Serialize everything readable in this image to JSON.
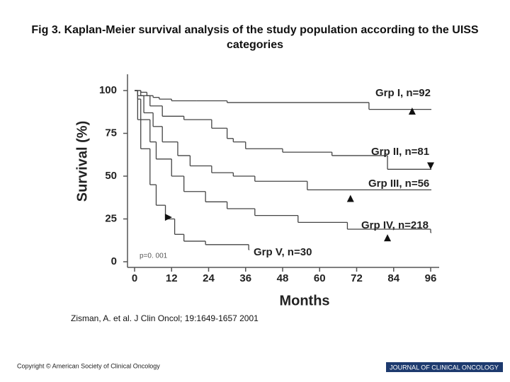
{
  "title": "Fig 3. Kaplan-Meier survival analysis of the study population according to the UISS categories",
  "citation": "Zisman, A. et al. J Clin Oncol; 19:1649-1657 2001",
  "footer": {
    "copyright": "Copyright © American Society of Clinical Oncology",
    "journal": "JOURNAL OF CLINICAL ONCOLOGY"
  },
  "chart_data": {
    "type": "line",
    "step": true,
    "xlabel": "Months",
    "ylabel": "Survival (%)",
    "annotation": "p=0. 001",
    "xlim": [
      0,
      96
    ],
    "ylim": [
      0,
      100
    ],
    "xticks": [
      0,
      12,
      24,
      36,
      48,
      60,
      72,
      84,
      96
    ],
    "yticks": [
      0,
      25,
      50,
      75,
      100
    ],
    "series": [
      {
        "name": "Grp I, n=92",
        "color": "#444444",
        "x": [
          0,
          2,
          4,
          6,
          8,
          12,
          20,
          30,
          76,
          96
        ],
        "values": [
          100,
          99,
          97,
          96,
          95,
          94,
          94,
          93,
          89,
          89
        ],
        "marker": {
          "x": 90,
          "y": 88,
          "shape": "triangle-up"
        }
      },
      {
        "name": "Grp II, n=81",
        "color": "#444444",
        "x": [
          0,
          2,
          5,
          9,
          16,
          25,
          30,
          32,
          36,
          48,
          64,
          82,
          96
        ],
        "values": [
          100,
          97,
          91,
          85,
          83,
          78,
          72,
          70,
          66,
          64,
          62,
          54,
          54
        ],
        "marker": {
          "x": 96,
          "y": 56,
          "shape": "triangle-down"
        }
      },
      {
        "name": "Grp III, n=56",
        "color": "#444444",
        "x": [
          0,
          1,
          3,
          6,
          9,
          14,
          18,
          25,
          32,
          39,
          56,
          96
        ],
        "values": [
          100,
          97,
          87,
          79,
          70,
          62,
          56,
          52,
          50,
          47,
          42,
          42
        ],
        "marker": {
          "x": 70,
          "y": 37,
          "shape": "triangle-up"
        }
      },
      {
        "name": "Grp IV, n=218",
        "color": "#444444",
        "x": [
          0,
          1,
          2,
          5,
          7,
          12,
          16,
          23,
          30,
          39,
          53,
          69,
          96
        ],
        "values": [
          100,
          95,
          83,
          70,
          60,
          50,
          41,
          35,
          31,
          27,
          23,
          19,
          17
        ],
        "marker": {
          "x": 82,
          "y": 14,
          "shape": "triangle-up"
        }
      },
      {
        "name": "Grp V, n=30",
        "color": "#444444",
        "x": [
          0,
          1,
          2,
          5,
          7,
          10,
          13,
          16,
          23,
          37
        ],
        "values": [
          100,
          83,
          66,
          45,
          33,
          25,
          16,
          12,
          10,
          7
        ],
        "marker": {
          "x": 11,
          "y": 26,
          "shape": "triangle-right"
        }
      }
    ]
  }
}
